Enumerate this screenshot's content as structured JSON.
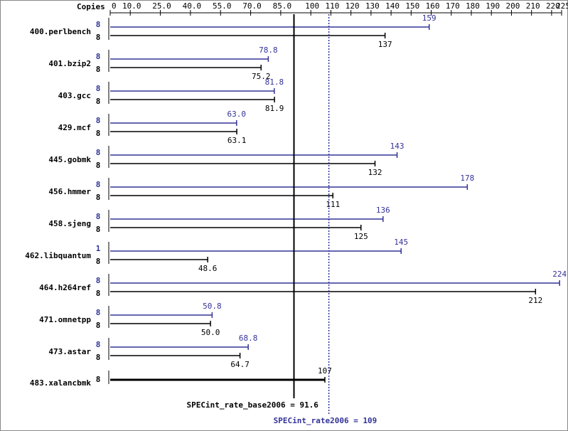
{
  "chart_data": {
    "type": "bar",
    "orientation": "horizontal",
    "copies_header": "Copies",
    "categories": [
      "400.perlbench",
      "401.bzip2",
      "403.gcc",
      "429.mcf",
      "445.gobmk",
      "456.hmmer",
      "458.sjeng",
      "462.libquantum",
      "464.h264ref",
      "471.omnetpp",
      "473.astar",
      "483.xalancbmk"
    ],
    "series": [
      {
        "color": "#333399",
        "copies": [
          8,
          8,
          8,
          8,
          8,
          8,
          8,
          1,
          8,
          8,
          8,
          null
        ],
        "values": [
          159,
          78.8,
          81.8,
          63.0,
          143,
          178,
          136,
          145,
          224,
          50.8,
          68.8,
          null
        ],
        "value_labels": [
          "159",
          "78.8",
          "81.8",
          "63.0",
          "143",
          "178",
          "136",
          "145",
          "224",
          "50.8",
          "68.8",
          null
        ]
      },
      {
        "color": "#000000",
        "copies": [
          8,
          8,
          8,
          8,
          8,
          8,
          8,
          8,
          8,
          8,
          8,
          8
        ],
        "values": [
          137,
          75.2,
          81.9,
          63.1,
          132,
          111,
          125,
          48.6,
          212,
          50.0,
          64.7,
          107
        ],
        "value_labels": [
          "137",
          "75.2",
          "81.9",
          "63.1",
          "132",
          "111",
          "125",
          "48.6",
          "212",
          "50.0",
          "64.7",
          "107"
        ]
      }
    ],
    "xlim": [
      0,
      225
    ],
    "xticks": [
      0,
      {
        "value": 10,
        "label": "10.0"
      },
      {
        "value": 25,
        "label": "25.0"
      },
      {
        "value": 40,
        "label": "40.0"
      },
      {
        "value": 55,
        "label": "55.0"
      },
      {
        "value": 70,
        "label": "70.0"
      },
      {
        "value": 85,
        "label": "85.0"
      },
      100,
      110,
      120,
      130,
      140,
      150,
      160,
      170,
      180,
      190,
      200,
      210,
      220,
      225
    ],
    "summary": [
      {
        "label": "SPECint_rate_base2006 = 91.6",
        "value": 91.6,
        "color": "#000000"
      },
      {
        "label": "SPECint_rate2006 = 109",
        "value": 109,
        "color": "#333399"
      }
    ]
  }
}
